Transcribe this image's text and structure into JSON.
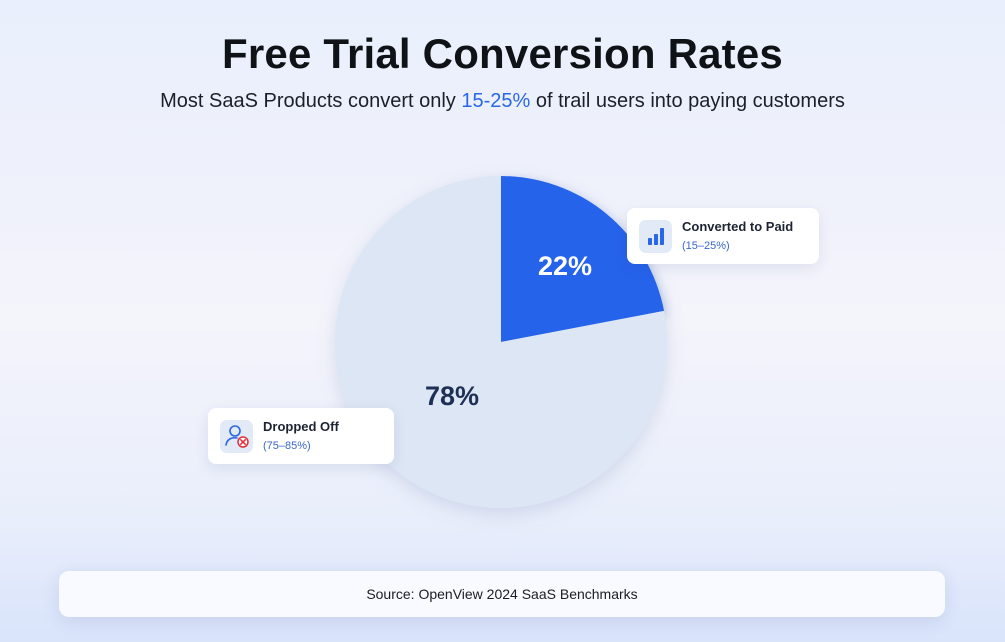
{
  "header": {
    "title": "Free Trial Conversion Rates",
    "subtitle_before": "Most SaaS Products convert only ",
    "subtitle_highlight": "15-25%",
    "subtitle_after": " of trail users into paying customers"
  },
  "chart_data": {
    "type": "pie",
    "title": "Free Trial Conversion Rates",
    "slices": [
      {
        "name": "Converted to Paid",
        "value": 22,
        "label": "22%",
        "range": "(15–25%)",
        "color": "#2563eb",
        "label_color": "#ffffff"
      },
      {
        "name": "Dropped Off",
        "value": 78,
        "label": "78%",
        "range": "(75–85%)",
        "color": "#dde6f4",
        "label_color": "#1e2f55"
      }
    ],
    "start_angle": "12 o'clock",
    "direction": "clockwise"
  },
  "callouts": {
    "converted": {
      "title": "Converted to Paid",
      "range": "(15–25%)",
      "icon": "bar-chart-icon"
    },
    "dropped": {
      "title": "Dropped Off",
      "range": "(75–85%)",
      "icon": "user-remove-icon"
    }
  },
  "footer": {
    "source": "Source: OpenView 2024 SaaS Benchmarks"
  },
  "colors": {
    "accent": "#2563eb",
    "highlight_text": "#2a67e8",
    "pie_background": "#dde6f4"
  }
}
